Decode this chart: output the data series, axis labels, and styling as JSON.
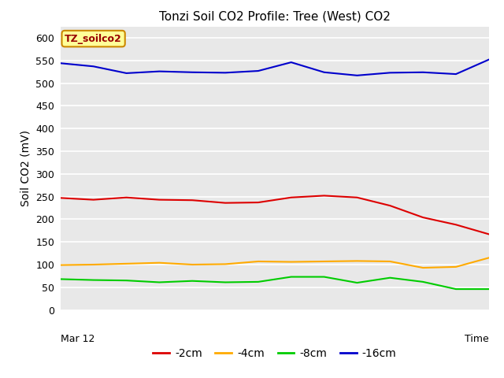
{
  "title": "Tonzi Soil CO2 Profile: Tree (West) CO2",
  "ylabel": "Soil CO2 (mV)",
  "xlabel": "Time",
  "xlabel_left": "Mar 12",
  "ylim": [
    0,
    625
  ],
  "yticks": [
    0,
    50,
    100,
    150,
    200,
    250,
    300,
    350,
    400,
    450,
    500,
    550,
    600
  ],
  "label_box_text": "TZ_soilco2",
  "label_box_color": "#ffff99",
  "label_box_edge": "#cc8800",
  "label_text_color": "#990000",
  "bg_color": "#e8e8e8",
  "fig_bg_color": "#ffffff",
  "series": {
    "-2cm": {
      "color": "#dd0000",
      "y": [
        247,
        243,
        248,
        243,
        242,
        236,
        237,
        248,
        252,
        248,
        230,
        204,
        188,
        167
      ]
    },
    "-4cm": {
      "color": "#ffaa00",
      "y": [
        99,
        100,
        102,
        104,
        100,
        101,
        107,
        106,
        107,
        108,
        107,
        93,
        95,
        115
      ]
    },
    "-8cm": {
      "color": "#00cc00",
      "y": [
        68,
        66,
        65,
        61,
        64,
        61,
        62,
        73,
        73,
        60,
        71,
        62,
        46,
        46
      ]
    },
    "-16cm": {
      "color": "#0000cc",
      "y": [
        544,
        537,
        522,
        526,
        524,
        523,
        527,
        546,
        524,
        517,
        523,
        524,
        520,
        552
      ]
    }
  },
  "n_points": 14,
  "legend_order": [
    "-2cm",
    "-4cm",
    "-8cm",
    "-16cm"
  ]
}
